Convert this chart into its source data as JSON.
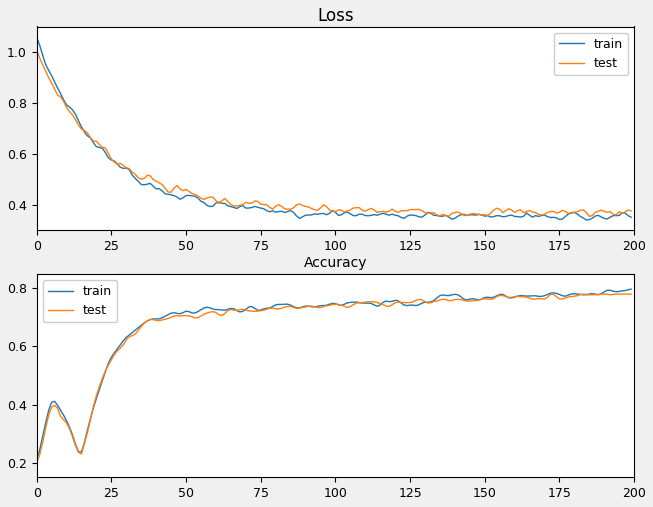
{
  "title_top": "Loss",
  "xlabel_top": "Accuracy",
  "legend_labels": [
    "train",
    "test"
  ],
  "train_color": "#1f77b4",
  "test_color": "#ff7f0e",
  "epochs": 200,
  "fig_width": 6.53,
  "fig_height": 5.07,
  "dpi": 100,
  "loss_ylim": [
    0.3,
    1.1
  ],
  "loss_yticks": [
    0.4,
    0.6,
    0.8,
    1.0
  ],
  "acc_ylim": [
    0.15,
    0.85
  ],
  "acc_yticks": [
    0.2,
    0.4,
    0.6,
    0.8
  ],
  "xticks": [
    0,
    25,
    50,
    75,
    100,
    125,
    150,
    175,
    200
  ],
  "bg_color": "#f0f0f0"
}
